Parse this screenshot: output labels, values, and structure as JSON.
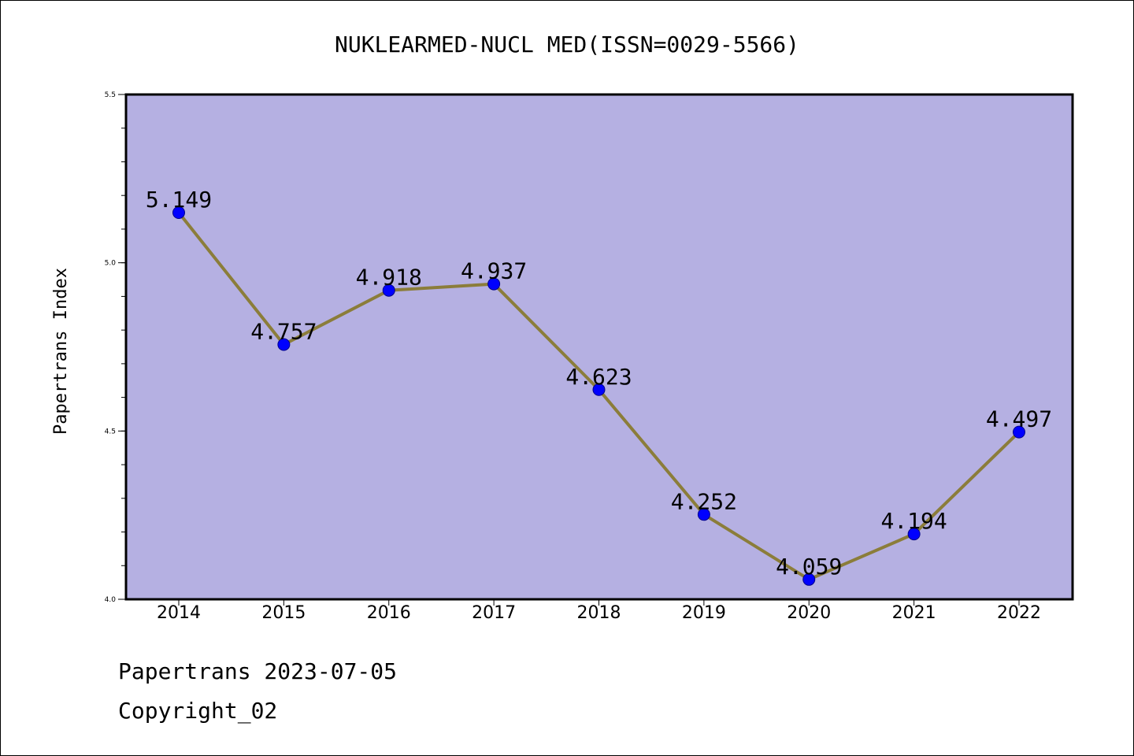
{
  "chart_data": {
    "type": "line",
    "title": "NUKLEARMED-NUCL MED(ISSN=0029-5566)",
    "xlabel": "",
    "ylabel": "Papertrans Index",
    "categories": [
      "2014",
      "2015",
      "2016",
      "2017",
      "2018",
      "2019",
      "2020",
      "2021",
      "2022"
    ],
    "series": [
      {
        "values": [
          5.149,
          4.757,
          4.918,
          4.937,
          4.623,
          4.252,
          4.059,
          4.194,
          4.497
        ],
        "labels": [
          "5.149",
          "4.757",
          "4.918",
          "4.937",
          "4.623",
          "4.252",
          "4.059",
          "4.194",
          "4.497"
        ]
      }
    ],
    "ylim": [
      4.0,
      5.5
    ],
    "yticks": [
      "4.0",
      "4.5",
      "5.0",
      "5.5"
    ],
    "y_minor_step": 0.1,
    "grid": false,
    "colors": {
      "plot_background": "#b5b0e2",
      "line": "#8b7d3a",
      "marker": "#0000ff",
      "marker_edge": "#00008b"
    }
  },
  "footer": {
    "date_text": "Papertrans 2023-07-05",
    "copyright_text": "Copyright_02"
  }
}
